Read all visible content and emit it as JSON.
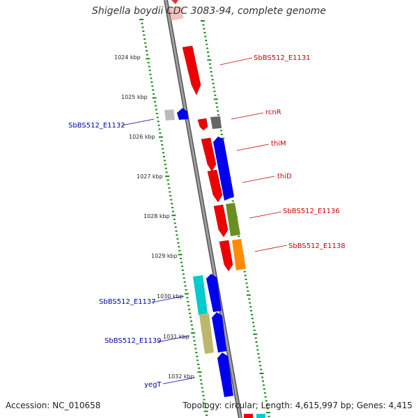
{
  "title": "Shigella boydii CDC 3083-94, complete genome",
  "accession": "Accession: NC_010658",
  "topology": "Topology: circular; Length: 4,615,997 bp; Genes: 4,415",
  "ticks": [
    "1024 kbp",
    "1025 kbp",
    "1026 kbp",
    "1027 kbp",
    "1028 kbp",
    "1029 kbp",
    "1030 kbp",
    "1031 kbp",
    "1032 kbp"
  ],
  "genes_right": [
    {
      "label": "SbBS512_E1131",
      "color": "#cc0000"
    },
    {
      "label": "rcnR",
      "color": "#cc0000"
    },
    {
      "label": "thiM",
      "color": "#cc0000"
    },
    {
      "label": "thiD",
      "color": "#cc0000"
    },
    {
      "label": "SbBS512_E1136",
      "color": "#cc0000"
    },
    {
      "label": "SbBS512_E1138",
      "color": "#cc0000"
    }
  ],
  "genes_left": [
    {
      "label": "SbBS512_E1132",
      "color": "#0000aa"
    },
    {
      "label": "SbBS512_E1137",
      "color": "#0000aa"
    },
    {
      "label": "SbBS512_E1139",
      "color": "#0000aa"
    },
    {
      "label": "yegT",
      "color": "#0000aa"
    }
  ],
  "colors": {
    "forward": "#ee0000",
    "reverse": "#0000ee",
    "grey": "#999999",
    "dark_grey": "#666666",
    "olive": "#6b8e23",
    "orange": "#ff8c00",
    "cyan": "#00cccc",
    "khaki": "#bdb76b",
    "backbone": "#888888",
    "dots": "#1a8a1a"
  }
}
